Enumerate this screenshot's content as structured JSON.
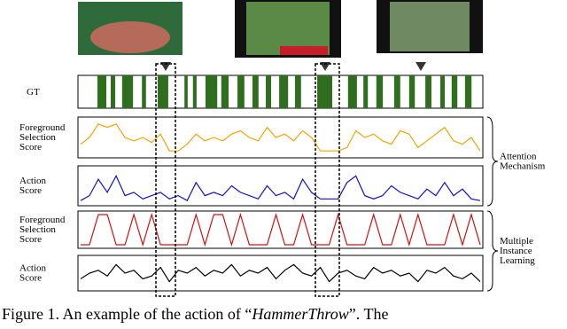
{
  "gt": {
    "label": "GT",
    "xlim": [
      0,
      100
    ],
    "segments": [
      [
        4.8,
        7.0
      ],
      [
        8.1,
        9.2
      ],
      [
        10.9,
        13.6
      ],
      [
        15.8,
        16.8
      ],
      [
        19.7,
        22.3
      ],
      [
        26.3,
        27.1
      ],
      [
        28.4,
        29.3
      ],
      [
        31.5,
        34.4
      ],
      [
        35.4,
        37.2
      ],
      [
        39.4,
        41.1
      ],
      [
        43.1,
        44.6
      ],
      [
        46.4,
        47.7
      ],
      [
        49.7,
        51.9
      ],
      [
        53.6,
        55.1
      ],
      [
        59.1,
        62.8
      ],
      [
        66.7,
        68.9
      ],
      [
        70.5,
        71.6
      ],
      [
        73.7,
        75.3
      ],
      [
        78.1,
        79.6
      ],
      [
        81.8,
        83.2
      ],
      [
        85.8,
        87.3
      ],
      [
        89.5,
        90.6
      ],
      [
        92.3,
        93.7
      ],
      [
        95.6,
        97.2
      ]
    ]
  },
  "panels": [
    {
      "label": [
        "Foreground",
        "Selection",
        "Score"
      ],
      "color": "#f5a300",
      "values": [
        0.3,
        0.5,
        0.9,
        0.8,
        0.9,
        0.5,
        0.4,
        0.5,
        0.35,
        0.6,
        0.1,
        0.1,
        0.3,
        0.6,
        0.4,
        0.5,
        0.4,
        0.6,
        0.7,
        0.5,
        0.4,
        0.8,
        0.5,
        0.6,
        0.4,
        0.7,
        0.5,
        0.1,
        0.1,
        0.1,
        0.2,
        0.7,
        0.5,
        0.6,
        0.4,
        0.3,
        0.7,
        0.6,
        0.2,
        0.4,
        0.6,
        0.8,
        0.4,
        0.3,
        0.5,
        0.1
      ]
    },
    {
      "label": [
        "Action",
        "Score"
      ],
      "color": "#1010d0",
      "values": [
        0.05,
        0.2,
        0.7,
        0.3,
        0.8,
        0.2,
        0.3,
        0.1,
        0.2,
        0.3,
        0.1,
        0.2,
        0.05,
        0.6,
        0.2,
        0.3,
        0.2,
        0.5,
        0.3,
        0.2,
        0.1,
        0.5,
        0.2,
        0.3,
        0.1,
        0.7,
        0.3,
        0.1,
        0.1,
        0.1,
        0.6,
        0.8,
        0.2,
        0.1,
        0.2,
        0.5,
        0.3,
        0.2,
        0.1,
        0.4,
        0.2,
        0.6,
        0.2,
        0.4,
        0.1,
        0.05
      ]
    },
    {
      "label": [
        "Foreground",
        "Selection",
        "Score"
      ],
      "color": "#d01010",
      "values": [
        0,
        0,
        1,
        1,
        0,
        0,
        1,
        0,
        1,
        0,
        0,
        0,
        0,
        1,
        0,
        1,
        1,
        0,
        1,
        0,
        0,
        0,
        1,
        0,
        0,
        1,
        0,
        0,
        0,
        1,
        0,
        0,
        0,
        1,
        0,
        0,
        1,
        0,
        1,
        0,
        0,
        0,
        1,
        0,
        1,
        0
      ]
    },
    {
      "label": [
        "Action",
        "Score"
      ],
      "color": "#000000",
      "values": [
        0.3,
        0.5,
        0.6,
        0.4,
        0.8,
        0.5,
        0.6,
        0.3,
        0.4,
        0.7,
        0.2,
        0.6,
        0.5,
        0.7,
        0.4,
        0.6,
        0.5,
        0.8,
        0.4,
        0.6,
        0.5,
        0.7,
        0.3,
        0.6,
        0.8,
        0.5,
        0.4,
        0.7,
        0.2,
        0.5,
        0.6,
        0.4,
        0.3,
        0.7,
        0.5,
        0.6,
        0.4,
        0.5,
        0.2,
        0.6,
        0.5,
        0.7,
        0.4,
        0.3,
        0.5,
        0.2
      ]
    }
  ],
  "groups": [
    {
      "label": [
        "Attention",
        "Mechanism"
      ]
    },
    {
      "label": [
        "Multiple",
        "Instance",
        "Learning"
      ]
    }
  ],
  "caption": {
    "prefix": "Figure 1. An example of the action of “",
    "italic": "HammerThrow",
    "suffix": "”.  The"
  }
}
